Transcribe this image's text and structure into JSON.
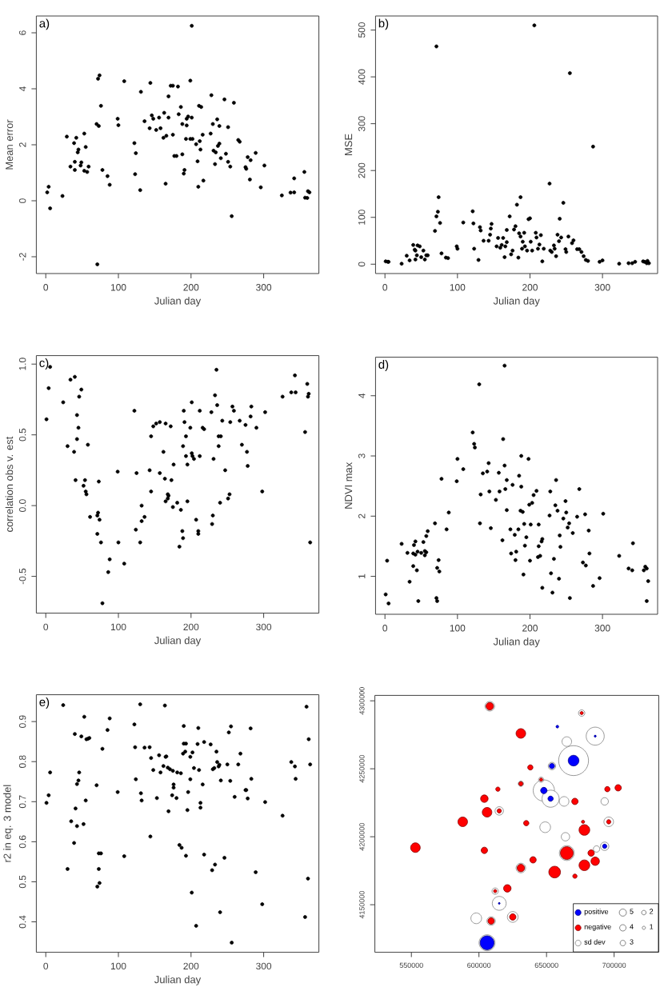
{
  "chart_data": [
    {
      "type": "scatter",
      "title": "a)",
      "xlabel": "Julian day",
      "ylabel": "Mean error",
      "color": "#000000",
      "marker": "circle",
      "xlim": [
        -13,
        376
      ],
      "ylim": [
        -2.6,
        6.6
      ],
      "xticks": [
        0,
        100,
        200,
        300
      ],
      "yticks": [
        -2,
        0,
        2,
        4,
        6
      ],
      "x": [
        2,
        4,
        6,
        23,
        29,
        34,
        39,
        42,
        44,
        45,
        40,
        40,
        48,
        49,
        53,
        55,
        53,
        57,
        59,
        71,
        70,
        73,
        72,
        74,
        76,
        78,
        85,
        88,
        99,
        100,
        108,
        122,
        124,
        123,
        130,
        131,
        136,
        144,
        143,
        146,
        148,
        152,
        156,
        158,
        162,
        163,
        166,
        169,
        165,
        169,
        172,
        175,
        175,
        177,
        180,
        182,
        183,
        186,
        188,
        188,
        190,
        191,
        193,
        194,
        194,
        196,
        199,
        199,
        201,
        201,
        202,
        207,
        209,
        210,
        211,
        212,
        214,
        216,
        217,
        213,
        227,
        228,
        230,
        231,
        233,
        234,
        236,
        237,
        239,
        239,
        241,
        246,
        248,
        251,
        251,
        254,
        256,
        259,
        265,
        267,
        275,
        276,
        278,
        282,
        281,
        289,
        296,
        301,
        325,
        337,
        342,
        342,
        356,
        357,
        360,
        361,
        363
      ],
      "values": [
        0.3,
        0.5,
        -0.27,
        0.17,
        2.29,
        1.22,
        2.06,
        2.25,
        1.73,
        1.83,
        1.39,
        1.1,
        1.26,
        1.37,
        2.4,
        1.92,
        1.07,
        1.03,
        1.22,
        -2.27,
        2.74,
        2.67,
        4.36,
        4.48,
        3.39,
        1.1,
        0.88,
        0.57,
        2.93,
        2.7,
        4.27,
        2.06,
        1.7,
        0.95,
        0.38,
        3.89,
        2.84,
        4.21,
        2.59,
        3.05,
        2.93,
        2.53,
        2.97,
        2.59,
        2.25,
        3.14,
        2.32,
        2.97,
        0.61,
        3.73,
        4.11,
        4.11,
        2.36,
        1.6,
        1.6,
        4.08,
        3.09,
        3.35,
        2.74,
        1.66,
        0.97,
        1.1,
        2.21,
        2.69,
        2.93,
        3.01,
        2.21,
        4.29,
        6.25,
        2.97,
        2.21,
        2.02,
        1.41,
        0.5,
        3.39,
        2.13,
        3.35,
        2.36,
        0.72,
        1.83,
        2.4,
        3.77,
        2.74,
        1.79,
        1.31,
        1.73,
        2.91,
        1.96,
        2.04,
        2.67,
        1.52,
        3.62,
        1.68,
        2.63,
        1.39,
        1.22,
        -0.55,
        3.5,
        2.17,
        2.11,
        1.2,
        1.14,
        1.56,
        1.45,
        0.76,
        1.71,
        0.48,
        1.26,
        0.19,
        0.29,
        0.3,
        0.8,
        1.03,
        0.11,
        0.1,
        0.34,
        0.3
      ]
    },
    {
      "type": "scatter",
      "title": "b)",
      "xlabel": "Julian day",
      "ylabel": "MSE",
      "color": "#000000",
      "marker": "circle",
      "xlim": [
        -13,
        376
      ],
      "ylim": [
        -20,
        530
      ],
      "xticks": [
        0,
        100,
        200,
        300
      ],
      "yticks": [
        0,
        100,
        200,
        300,
        400,
        500
      ],
      "x": [
        1,
        4,
        5,
        23,
        30,
        34,
        39,
        41,
        42,
        44,
        45,
        42,
        48,
        50,
        53,
        55,
        57,
        59,
        69,
        71,
        71,
        73,
        74,
        76,
        78,
        84,
        87,
        99,
        100,
        108,
        121,
        122,
        123,
        129,
        131,
        132,
        136,
        143,
        145,
        146,
        147,
        154,
        156,
        159,
        161,
        163,
        165,
        166,
        168,
        168,
        172,
        174,
        176,
        178,
        180,
        182,
        184,
        185,
        187,
        187,
        189,
        190,
        192,
        193,
        196,
        198,
        200,
        201,
        203,
        206,
        208,
        209,
        211,
        213,
        215,
        217,
        219,
        227,
        228,
        230,
        233,
        234,
        236,
        238,
        240,
        241,
        243,
        246,
        249,
        250,
        253,
        255,
        258,
        260,
        265,
        268,
        271,
        274,
        277,
        280,
        287,
        296,
        300,
        323,
        336,
        341,
        345,
        356,
        358,
        361,
        362,
        364
      ],
      "values": [
        6,
        5,
        5,
        1,
        18,
        8,
        41,
        31,
        10,
        19,
        40,
        29,
        38,
        15,
        29,
        10,
        19,
        19,
        71,
        102,
        465,
        112,
        143,
        88,
        23,
        14,
        13,
        38,
        33,
        89,
        113,
        87,
        33,
        9,
        79,
        72,
        50,
        50,
        63,
        76,
        86,
        38,
        56,
        35,
        41,
        56,
        15,
        38,
        47,
        73,
        102,
        21,
        29,
        74,
        81,
        127,
        14,
        66,
        143,
        59,
        33,
        48,
        67,
        38,
        29,
        96,
        98,
        48,
        29,
        510,
        67,
        57,
        33,
        42,
        62,
        6,
        33,
        172,
        29,
        26,
        40,
        33,
        17,
        63,
        49,
        97,
        57,
        131,
        32,
        26,
        59,
        408,
        45,
        51,
        32,
        32,
        26,
        17,
        9,
        7,
        251,
        5,
        8,
        1,
        2,
        2,
        5,
        6,
        5,
        2,
        7,
        2
      ]
    },
    {
      "type": "scatter",
      "title": "c)",
      "xlabel": "Julian day",
      "ylabel": "correlation obs v. est",
      "color": "#000000",
      "marker": "circle",
      "xlim": [
        -13,
        376
      ],
      "ylim": [
        -0.76,
        1.06
      ],
      "xticks": [
        0,
        100,
        200,
        300
      ],
      "yticks": [
        -0.5,
        {
          "value": 0,
          "label": "0.0"
        },
        0.5,
        {
          "value": 1,
          "label": "1.0"
        }
      ],
      "x": [
        1,
        4,
        6,
        24,
        30,
        34,
        39,
        40,
        41,
        43,
        43,
        45,
        46,
        49,
        52,
        54,
        55,
        56,
        58,
        61,
        71,
        71,
        72,
        73,
        74,
        76,
        78,
        86,
        88,
        99,
        100,
        108,
        122,
        124,
        125,
        130,
        132,
        132,
        136,
        143,
        145,
        145,
        148,
        152,
        157,
        157,
        162,
        164,
        165,
        165,
        168,
        168,
        169,
        172,
        173,
        175,
        176,
        181,
        184,
        186,
        188,
        189,
        189,
        190,
        191,
        193,
        193,
        195,
        195,
        199,
        201,
        201,
        202,
        204,
        207,
        210,
        210,
        212,
        212,
        216,
        218,
        228,
        229,
        230,
        231,
        233,
        235,
        236,
        238,
        238,
        240,
        241,
        243,
        247,
        251,
        253,
        254,
        257,
        259,
        267,
        270,
        275,
        277,
        278,
        282,
        283,
        290,
        298,
        302,
        326,
        338,
        343,
        344,
        357,
        360,
        361,
        362,
        364
      ],
      "values": [
        0.61,
        0.83,
        0.98,
        0.73,
        0.42,
        0.89,
        0.38,
        0.91,
        0.18,
        0.64,
        0.47,
        0.55,
        0.77,
        0.82,
        0.14,
        0.18,
        0.1,
        0.08,
        0.43,
        -0.08,
        -0.2,
        -0.07,
        -0.05,
        0.17,
        -0.1,
        -0.26,
        -0.69,
        -0.47,
        -0.38,
        0.24,
        -0.26,
        -0.41,
        0.67,
        -0.17,
        0.23,
        -0.26,
        0.0,
        -0.11,
        -0.08,
        0.25,
        0.1,
        0.49,
        0.56,
        0.58,
        0.59,
        0.23,
        0.38,
        0.19,
        0.58,
        0.03,
        0.05,
        0.08,
        0.07,
        0.56,
        0.18,
        -0.01,
        0.29,
        0.02,
        -0.29,
        -0.03,
        -0.18,
        -0.23,
        0.42,
        0.67,
        0.59,
        0.35,
        0.49,
        0.29,
        0.03,
        0.55,
        0.73,
        0.37,
        0.35,
        0.33,
        -0.1,
        -0.2,
        -0.18,
        0.35,
        0.67,
        0.55,
        0.54,
        0.66,
        -0.13,
        -0.07,
        0.33,
        0.78,
        0.96,
        0.71,
        0.42,
        0.49,
        0.02,
        0.49,
        0.6,
        0.25,
        0.05,
        0.08,
        0.59,
        0.7,
        0.67,
        0.6,
        0.43,
        0.57,
        0.38,
        0.28,
        0.63,
        0.7,
        0.55,
        0.1,
        0.66,
        0.77,
        0.8,
        0.92,
        0.8,
        0.52,
        0.86,
        0.77,
        0.79,
        -0.26
      ]
    },
    {
      "type": "scatter",
      "title": "d)",
      "xlabel": "Julian day",
      "ylabel": "NDVI max",
      "color": "#000000",
      "marker": "circle",
      "xlim": [
        -13,
        376
      ],
      "ylim": [
        0.37,
        4.64
      ],
      "xticks": [
        0,
        100,
        200,
        300
      ],
      "yticks": [
        1,
        2,
        3,
        4
      ],
      "x": [
        1,
        3,
        5,
        23,
        31,
        34,
        39,
        39,
        40,
        42,
        42,
        44,
        45,
        46,
        50,
        53,
        55,
        55,
        57,
        57,
        59,
        69,
        71,
        72,
        72,
        74,
        75,
        78,
        85,
        88,
        99,
        100,
        108,
        121,
        123,
        124,
        130,
        132,
        131,
        135,
        141,
        143,
        144,
        146,
        153,
        157,
        158,
        162,
        163,
        165,
        165,
        166,
        168,
        168,
        173,
        174,
        176,
        179,
        180,
        181,
        184,
        185,
        187,
        188,
        188,
        190,
        191,
        192,
        193,
        195,
        198,
        199,
        200,
        201,
        203,
        205,
        209,
        211,
        212,
        212,
        214,
        216,
        217,
        217,
        227,
        228,
        229,
        231,
        233,
        235,
        236,
        238,
        240,
        241,
        242,
        246,
        249,
        250,
        252,
        254,
        255,
        259,
        265,
        268,
        273,
        276,
        277,
        281,
        282,
        287,
        296,
        301,
        323,
        336,
        341,
        342,
        357,
        359,
        361,
        361,
        363
      ],
      "values": [
        0.7,
        1.26,
        0.55,
        1.54,
        1.39,
        0.91,
        1.38,
        1.17,
        1.52,
        1.58,
        1.36,
        1.1,
        1.41,
        0.59,
        1.39,
        1.57,
        1.35,
        1.42,
        1.4,
        1.67,
        1.75,
        1.88,
        0.64,
        0.59,
        1.14,
        1.27,
        1.08,
        2.62,
        1.78,
        2.06,
        2.58,
        2.95,
        2.78,
        3.39,
        3.2,
        3.14,
        4.19,
        2.36,
        1.88,
        2.71,
        2.74,
        2.88,
        2.41,
        1.8,
        2.27,
        2.72,
        2.41,
        1.6,
        3.28,
        2.84,
        4.5,
        2.45,
        2.6,
        2.1,
        1.78,
        1.38,
        2.52,
        1.69,
        1.27,
        1.41,
        1.78,
        2.67,
        2.09,
        3.0,
        2.49,
        2.07,
        1.03,
        1.87,
        1.51,
        1.65,
        2.95,
        2.19,
        1.26,
        1.86,
        2.22,
        2.35,
        2.42,
        1.32,
        1.86,
        1.5,
        1.34,
        1.58,
        1.62,
        0.81,
        2.01,
        2.41,
        1.05,
        0.73,
        1.29,
        2.18,
        2.6,
        2.09,
        0.96,
        1.68,
        1.49,
        1.96,
        2.25,
        2.06,
        1.81,
        1.88,
        0.64,
        1.72,
        1.99,
        2.45,
        1.23,
        2.03,
        1.18,
        1.76,
        1.38,
        0.84,
        0.97,
        2.04,
        1.34,
        1.13,
        1.1,
        1.55,
        1.1,
        1.16,
        1.13,
        0.59,
        0.92
      ]
    },
    {
      "type": "scatter",
      "title": "e)",
      "xlabel": "Julian day",
      "ylabel": "r2 in eq. 3 model",
      "color": "#000000",
      "marker": "circle",
      "xlim": [
        -13,
        376
      ],
      "ylim": [
        0.324,
        0.967
      ],
      "xticks": [
        0,
        100,
        200,
        300
      ],
      "yticks": [
        0.4,
        0.5,
        0.6,
        0.7,
        0.8,
        0.9
      ],
      "x": [
        1,
        4,
        6,
        24,
        30,
        35,
        39,
        40,
        41,
        43,
        43,
        45,
        46,
        49,
        52,
        53,
        55,
        56,
        58,
        60,
        70,
        71,
        73,
        73,
        74,
        76,
        78,
        85,
        88,
        99,
        108,
        122,
        123,
        124,
        130,
        131,
        132,
        136,
        143,
        144,
        145,
        148,
        153,
        156,
        158,
        162,
        164,
        165,
        166,
        168,
        169,
        171,
        174,
        175,
        176,
        176,
        180,
        181,
        184,
        186,
        187,
        189,
        190,
        190,
        192,
        193,
        193,
        195,
        196,
        199,
        199,
        201,
        202,
        204,
        207,
        209,
        210,
        211,
        213,
        213,
        216,
        218,
        218,
        227,
        229,
        230,
        232,
        233,
        235,
        236,
        238,
        239,
        240,
        241,
        246,
        250,
        252,
        254,
        255,
        256,
        260,
        265,
        268,
        275,
        276,
        278,
        282,
        283,
        289,
        298,
        302,
        326,
        338,
        343,
        344,
        357,
        359,
        361,
        362,
        364
      ],
      "values": [
        0.697,
        0.716,
        0.773,
        0.941,
        0.532,
        0.651,
        0.597,
        0.869,
        0.683,
        0.639,
        0.744,
        0.753,
        0.773,
        0.863,
        0.644,
        0.912,
        0.703,
        0.856,
        0.857,
        0.859,
        0.741,
        0.488,
        0.571,
        0.532,
        0.497,
        0.571,
        0.832,
        0.879,
        0.908,
        0.724,
        0.564,
        0.893,
        0.836,
        0.756,
        0.943,
        0.721,
        0.703,
        0.835,
        0.836,
        0.613,
        0.809,
        0.779,
        0.709,
        0.816,
        0.773,
        0.789,
        0.94,
        0.812,
        0.813,
        0.785,
        0.676,
        0.781,
        0.716,
        0.777,
        0.743,
        0.735,
        0.709,
        0.773,
        0.592,
        0.771,
        0.585,
        0.82,
        0.889,
        0.845,
        0.825,
        0.565,
        0.845,
        0.679,
        0.724,
        0.812,
        0.756,
        0.473,
        0.823,
        0.784,
        0.39,
        0.844,
        0.884,
        0.779,
        0.697,
        0.685,
        0.743,
        0.568,
        0.849,
        0.843,
        0.529,
        0.781,
        0.784,
        0.543,
        0.825,
        0.799,
        0.788,
        0.792,
        0.424,
        0.753,
        0.56,
        0.793,
        0.873,
        0.752,
        0.888,
        0.348,
        0.712,
        0.793,
        0.82,
        0.729,
        0.729,
        0.708,
        0.883,
        0.757,
        0.524,
        0.444,
        0.699,
        0.665,
        0.799,
        0.788,
        0.757,
        0.412,
        0.937,
        0.508,
        0.856,
        0.793
      ]
    },
    {
      "type": "bubble",
      "marker": "circle",
      "legend": "bottom right",
      "size_legend": [
        5,
        4,
        3,
        2,
        1
      ],
      "xlim": [
        523000,
        733000
      ],
      "ylim": [
        4115000,
        4304000
      ],
      "xticks": [
        550000,
        600000,
        650000,
        700000
      ],
      "yticks": [
        4150000,
        4200000,
        4250000,
        4300000
      ],
      "series": [
        {
          "name": "positive",
          "color": "#0000ff",
          "x": [
            658000,
            686000,
            670000,
            654000,
            648000,
            653000,
            693000,
            615000,
            606000
          ],
          "values": [
            4281000,
            4274000,
            4256000,
            4252000,
            4234000,
            4228000,
            4193000,
            4151000,
            4122000
          ],
          "sizes": [
            0.7,
            0.4,
            11.2,
            2.7,
            4,
            2.7,
            1.8,
            0.3,
            18.9
          ]
        },
        {
          "name": "negative",
          "color": "#ff0000",
          "x": [
            608000,
            676000,
            631000,
            638000,
            646000,
            614000,
            631000,
            695000,
            703000,
            604000,
            671000,
            606000,
            615000,
            588000,
            635000,
            677000,
            696000,
            678000,
            553000,
            604000,
            665000,
            683000,
            640000,
            686000,
            678000,
            631000,
            656000,
            671000,
            621000,
            612000,
            609000,
            625000
          ],
          "values": [
            4296000,
            4291000,
            4276000,
            4251000,
            4242000,
            4235000,
            4239000,
            4235000,
            4236000,
            4228000,
            4226000,
            4218000,
            4219000,
            4211000,
            4210000,
            4211000,
            4211000,
            4205000,
            4192000,
            4190000,
            4188000,
            4188000,
            4183000,
            4182000,
            4179000,
            4177000,
            4174000,
            4171000,
            4162000,
            4160000,
            4138000,
            4141000
          ],
          "sizes": [
            5.5,
            1,
            9,
            2.7,
            1,
            1.8,
            1.8,
            2.7,
            4,
            5.5,
            4,
            9,
            1.8,
            9,
            2.7,
            1,
            1.8,
            11.2,
            9,
            4,
            16,
            4,
            4,
            7,
            11.2,
            5.5,
            13.3,
            1.8,
            5.5,
            1,
            4,
            4
          ]
        },
        {
          "name": "sd dev",
          "color": "#ffffff",
          "x": [
            608000,
            676000,
            686000,
            665000,
            670000,
            654000,
            646000,
            631000,
            648000,
            653000,
            663000,
            693000,
            615000,
            649000,
            696000,
            664000,
            693000,
            687000,
            665000,
            631000,
            612000,
            615000,
            598000,
            609000,
            625000,
            606000
          ],
          "values": [
            4296000,
            4291000,
            4274000,
            4270000,
            4256000,
            4252000,
            4242000,
            4239000,
            4234000,
            4228000,
            4226000,
            4226000,
            4219000,
            4207000,
            4211000,
            4200000,
            4193000,
            4191000,
            4188000,
            4177000,
            4160000,
            4151000,
            4140000,
            4138000,
            4141000,
            4122000
          ],
          "sizes": [
            9,
            4,
            31.9,
            9,
            87.4,
            5.5,
            2.7,
            2.7,
            44.2,
            28.6,
            9,
            5.5,
            7,
            11.2,
            9,
            7,
            7,
            4,
            21.6,
            9,
            4,
            18.9,
            11.2,
            7,
            11.2,
            25
          ]
        }
      ]
    }
  ]
}
